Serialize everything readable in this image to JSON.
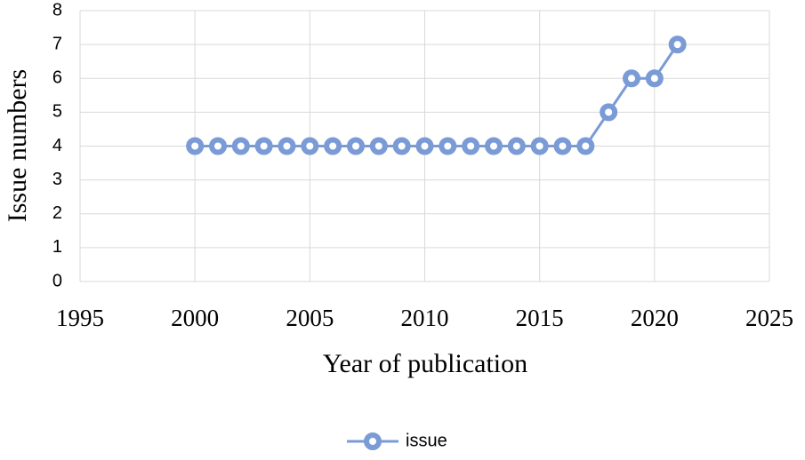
{
  "chart_data": {
    "type": "line",
    "x": [
      2000,
      2001,
      2002,
      2003,
      2004,
      2005,
      2006,
      2007,
      2008,
      2009,
      2010,
      2011,
      2012,
      2013,
      2014,
      2015,
      2016,
      2017,
      2018,
      2019,
      2020,
      2021
    ],
    "series": [
      {
        "name": "issue",
        "color": "#7b9bd6",
        "values": [
          4,
          4,
          4,
          4,
          4,
          4,
          4,
          4,
          4,
          4,
          4,
          4,
          4,
          4,
          4,
          4,
          4,
          4,
          5,
          6,
          6,
          7
        ]
      }
    ],
    "x_label": "Year of publication",
    "y_label": "Issue numbers",
    "xlim": [
      1995,
      2025
    ],
    "xticks": [
      1995,
      2000,
      2005,
      2010,
      2015,
      2020,
      2025
    ],
    "ylim": [
      0,
      8
    ],
    "yticks": [
      0,
      1,
      2,
      3,
      4,
      5,
      6,
      7,
      8
    ],
    "grid": true,
    "legend": "bottom"
  }
}
